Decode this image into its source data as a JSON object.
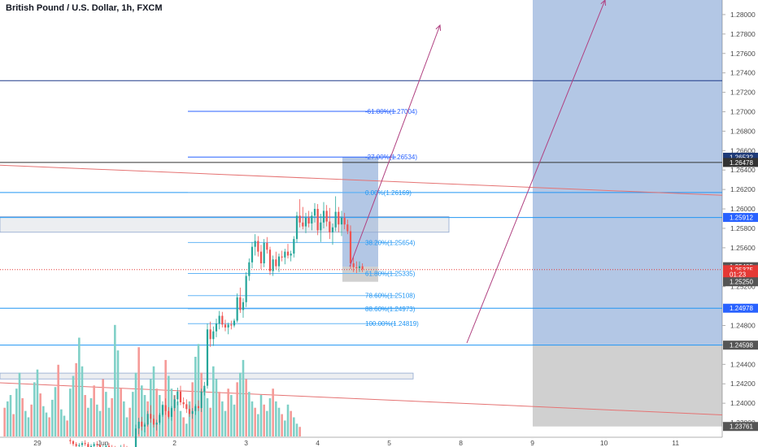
{
  "header": {
    "title": "British Pound / U.S. Dollar, 1h, FXCM"
  },
  "chart_data": {
    "type": "candlestick",
    "title": "British Pound / U.S. Dollar, 1h, FXCM",
    "ylim": [
      1.2365,
      1.2815
    ],
    "y_ticks": [
      1.28,
      1.278,
      1.276,
      1.274,
      1.272,
      1.27,
      1.268,
      1.266,
      1.264,
      1.262,
      1.26,
      1.258,
      1.256,
      1.252,
      1.248,
      1.246,
      1.244,
      1.242,
      1.24,
      1.238
    ],
    "y_tick_labels": [
      "1.28000",
      "1.27800",
      "1.27600",
      "1.27400",
      "1.27200",
      "1.27000",
      "1.26800",
      "1.26600",
      "1.26400",
      "1.26200",
      "1.26000",
      "1.25800",
      "1.25600",
      "1.25200",
      "1.24800",
      "1.24600",
      "1.24400",
      "1.24200",
      "1.24000",
      "1.23800"
    ],
    "x_ticks": [
      {
        "label": "29",
        "index": 0
      },
      {
        "label": "Jun",
        "index": 22
      },
      {
        "label": "2",
        "index": 46
      },
      {
        "label": "3",
        "index": 70
      },
      {
        "label": "4",
        "index": 94
      },
      {
        "label": "5",
        "index": 118
      },
      {
        "label": "8",
        "index": 142
      },
      {
        "label": "9",
        "index": 166
      },
      {
        "label": "10",
        "index": 190
      },
      {
        "label": "11",
        "index": 214
      }
    ],
    "x_start_index": -11,
    "x_end_index": 227,
    "candles": [
      [
        1.2362,
        1.2364,
        1.2358,
        1.2361
      ],
      [
        1.2361,
        1.2362,
        1.2356,
        1.2358
      ],
      [
        1.2358,
        1.236,
        1.2354,
        1.2356
      ],
      [
        1.2356,
        1.2359,
        1.2353,
        1.2357
      ],
      [
        1.2357,
        1.2361,
        1.2355,
        1.2359
      ],
      [
        1.2359,
        1.2362,
        1.2356,
        1.2358
      ],
      [
        1.2358,
        1.236,
        1.2352,
        1.2354
      ],
      [
        1.2354,
        1.2358,
        1.2351,
        1.2356
      ],
      [
        1.2356,
        1.236,
        1.2354,
        1.2358
      ],
      [
        1.2358,
        1.2361,
        1.2355,
        1.2357
      ],
      [
        1.2357,
        1.2358,
        1.235,
        1.2352
      ],
      [
        1.2352,
        1.2356,
        1.235,
        1.2354
      ],
      [
        1.2354,
        1.2358,
        1.2352,
        1.2356
      ],
      [
        1.2356,
        1.2359,
        1.2353,
        1.2355
      ],
      [
        1.2355,
        1.2357,
        1.2351,
        1.2353
      ],
      [
        1.2353,
        1.2356,
        1.235,
        1.2351
      ],
      [
        1.2351,
        1.2355,
        1.2349,
        1.2353
      ],
      [
        1.2353,
        1.2357,
        1.2351,
        1.2355
      ],
      [
        1.2355,
        1.2358,
        1.2352,
        1.2354
      ],
      [
        1.2354,
        1.2356,
        1.2348,
        1.235
      ],
      [
        1.235,
        1.2354,
        1.2348,
        1.2352
      ],
      [
        1.2352,
        1.2355,
        1.2349,
        1.2351
      ],
      [
        1.2351,
        1.2378,
        1.2349,
        1.2374
      ],
      [
        1.2374,
        1.2385,
        1.2368,
        1.2381
      ],
      [
        1.2381,
        1.2386,
        1.2372,
        1.2376
      ],
      [
        1.2376,
        1.238,
        1.237,
        1.2378
      ],
      [
        1.2378,
        1.2392,
        1.2376,
        1.2389
      ],
      [
        1.2389,
        1.2398,
        1.238,
        1.2384
      ],
      [
        1.2384,
        1.2388,
        1.2375,
        1.2378
      ],
      [
        1.2378,
        1.2383,
        1.2372,
        1.238
      ],
      [
        1.238,
        1.239,
        1.2378,
        1.2388
      ],
      [
        1.2388,
        1.2402,
        1.2386,
        1.2398
      ],
      [
        1.2398,
        1.2405,
        1.2388,
        1.2392
      ],
      [
        1.2392,
        1.2396,
        1.2384,
        1.2386
      ],
      [
        1.2386,
        1.2397,
        1.2382,
        1.2395
      ],
      [
        1.2395,
        1.2408,
        1.2392,
        1.2404
      ],
      [
        1.2404,
        1.2416,
        1.2398,
        1.2412
      ],
      [
        1.2412,
        1.2418,
        1.2398,
        1.2401
      ],
      [
        1.2401,
        1.2406,
        1.2395,
        1.2399
      ],
      [
        1.2399,
        1.2404,
        1.239,
        1.2394
      ],
      [
        1.2394,
        1.2398,
        1.2386,
        1.2389
      ],
      [
        1.2389,
        1.2395,
        1.2384,
        1.2392
      ],
      [
        1.2392,
        1.2399,
        1.2388,
        1.2397
      ],
      [
        1.2397,
        1.2403,
        1.2392,
        1.2395
      ],
      [
        1.2395,
        1.2415,
        1.2391,
        1.2412
      ],
      [
        1.2412,
        1.2422,
        1.2408,
        1.2418
      ],
      [
        1.2418,
        1.2482,
        1.2415,
        1.2476
      ],
      [
        1.2476,
        1.2484,
        1.2458,
        1.2466
      ],
      [
        1.2466,
        1.2479,
        1.2459,
        1.2474
      ],
      [
        1.2474,
        1.2487,
        1.2468,
        1.2482
      ],
      [
        1.2482,
        1.2495,
        1.2476,
        1.249
      ],
      [
        1.249,
        1.2494,
        1.2478,
        1.2481
      ],
      [
        1.2481,
        1.2486,
        1.2474,
        1.2478
      ],
      [
        1.2478,
        1.2483,
        1.2471,
        1.2481
      ],
      [
        1.2481,
        1.2485,
        1.2476,
        1.248
      ],
      [
        1.248,
        1.2487,
        1.2478,
        1.2485
      ],
      [
        1.2485,
        1.2513,
        1.2483,
        1.2509
      ],
      [
        1.2509,
        1.2519,
        1.2493,
        1.2496
      ],
      [
        1.2496,
        1.2508,
        1.2488,
        1.2504
      ],
      [
        1.2504,
        1.2535,
        1.2499,
        1.2531
      ],
      [
        1.2531,
        1.2549,
        1.2526,
        1.2545
      ],
      [
        1.2545,
        1.2566,
        1.2539,
        1.2561
      ],
      [
        1.2561,
        1.2574,
        1.2552,
        1.2567
      ],
      [
        1.2567,
        1.2572,
        1.2551,
        1.2556
      ],
      [
        1.2556,
        1.2563,
        1.2538,
        1.2544
      ],
      [
        1.2544,
        1.2569,
        1.254,
        1.2565
      ],
      [
        1.2565,
        1.2571,
        1.2554,
        1.2558
      ],
      [
        1.2558,
        1.2561,
        1.2532,
        1.2536
      ],
      [
        1.2536,
        1.2552,
        1.2531,
        1.2548
      ],
      [
        1.2548,
        1.2556,
        1.2538,
        1.2541
      ],
      [
        1.2541,
        1.2554,
        1.2535,
        1.2551
      ],
      [
        1.2551,
        1.2557,
        1.2546,
        1.255
      ],
      [
        1.255,
        1.2559,
        1.2543,
        1.2556
      ],
      [
        1.2556,
        1.2564,
        1.2549,
        1.2552
      ],
      [
        1.2552,
        1.2557,
        1.2546,
        1.2554
      ],
      [
        1.2554,
        1.2572,
        1.255,
        1.2569
      ],
      [
        1.2569,
        1.2597,
        1.2565,
        1.2593
      ],
      [
        1.2593,
        1.261,
        1.2581,
        1.2586
      ],
      [
        1.2586,
        1.2602,
        1.2579,
        1.2582
      ],
      [
        1.2582,
        1.2596,
        1.2575,
        1.2591
      ],
      [
        1.2591,
        1.2598,
        1.2581,
        1.2585
      ],
      [
        1.2585,
        1.2597,
        1.2578,
        1.2593
      ],
      [
        1.2593,
        1.2606,
        1.2586,
        1.26
      ],
      [
        1.26,
        1.2605,
        1.2573,
        1.2578
      ],
      [
        1.2578,
        1.2595,
        1.2566,
        1.2586
      ],
      [
        1.2586,
        1.2607,
        1.258,
        1.2598
      ],
      [
        1.2598,
        1.2604,
        1.2582,
        1.2587
      ],
      [
        1.2587,
        1.2601,
        1.2569,
        1.2576
      ],
      [
        1.2576,
        1.2585,
        1.2563,
        1.2581
      ],
      [
        1.2581,
        1.2613,
        1.2577,
        1.2597
      ],
      [
        1.2597,
        1.2602,
        1.2576,
        1.2584
      ],
      [
        1.2584,
        1.2598,
        1.2572,
        1.2591
      ],
      [
        1.2591,
        1.2596,
        1.2579,
        1.2584
      ],
      [
        1.2584,
        1.2589,
        1.2574,
        1.2577
      ],
      [
        1.2577,
        1.2583,
        1.2538,
        1.2544
      ],
      [
        1.2544,
        1.255,
        1.2535,
        1.254
      ],
      [
        1.254,
        1.2546,
        1.2534,
        1.2539
      ],
      [
        1.2539,
        1.2546,
        1.2535,
        1.2541
      ],
      [
        1.2541,
        1.2544,
        1.2535,
        1.2538
      ]
    ],
    "volumes": [
      18,
      22,
      26,
      14,
      30,
      40,
      24,
      16,
      12,
      20,
      34,
      42,
      27,
      19,
      15,
      12,
      23,
      31,
      45,
      17,
      13,
      10,
      30,
      38,
      46,
      62,
      44,
      26,
      18,
      24,
      32,
      20,
      16,
      36,
      28,
      18,
      24,
      70,
      54,
      30,
      22,
      12,
      18,
      28,
      40,
      56,
      32,
      26,
      22,
      36,
      44,
      30,
      26,
      20,
      48,
      38,
      30,
      26,
      22,
      16,
      12,
      8,
      22,
      34,
      50,
      58,
      40,
      30,
      24,
      18,
      44,
      36,
      28,
      22,
      16,
      30,
      26,
      20,
      34,
      40,
      48,
      36,
      28,
      22,
      18,
      14,
      26,
      20,
      16,
      24,
      30,
      22,
      18,
      14,
      10,
      20,
      16,
      12,
      8,
      6
    ],
    "volume_colors": "alternating",
    "last_price": 1.25375
  },
  "price_tags": [
    {
      "label": "1.26532",
      "value": 1.26532,
      "color": "#1e3a78"
    },
    {
      "label": "1.26478",
      "value": 1.26478,
      "color": "#333333"
    },
    {
      "label": "1.25912",
      "value": 1.25912,
      "color": "#2962ff"
    },
    {
      "label": "1.25405",
      "value": 1.25405,
      "color": "#555555"
    },
    {
      "label": "1.25375",
      "value": 1.25375,
      "color": "#e53935"
    },
    {
      "label": "01:23",
      "value": 1.25325,
      "color": "#e53935"
    },
    {
      "label": "1.25250",
      "value": 1.2525,
      "color": "#555555"
    },
    {
      "label": "1.24978",
      "value": 1.24978,
      "color": "#2962ff"
    },
    {
      "label": "1.24598",
      "value": 1.24598,
      "color": "#555555"
    },
    {
      "label": "1.23761",
      "value": 1.23761,
      "color": "#555555"
    }
  ],
  "fib_levels": [
    {
      "label": "-61.80%(1.27004)",
      "value": 1.27004
    },
    {
      "label": "-27.00%(1.26534)",
      "value": 1.26534
    },
    {
      "label": "0.00%(1.26169)",
      "value": 1.26169
    },
    {
      "label": "38.20%(1.25654)",
      "value": 1.25654
    },
    {
      "label": "61.80%(1.25335)",
      "value": 1.25335
    },
    {
      "label": "78.60%(1.25108)",
      "value": 1.25108
    },
    {
      "label": "88.60%(1.24973)",
      "value": 1.24973
    },
    {
      "label": "100.00%(1.24819)",
      "value": 1.24819
    }
  ],
  "horizontal_lines": [
    {
      "value": 1.2732,
      "color": "#1e3a8a"
    },
    {
      "value": 1.26478,
      "color": "#333333"
    },
    {
      "value": 1.26169,
      "color": "#2196f3"
    },
    {
      "value": 1.25912,
      "color": "#2196f3"
    },
    {
      "value": 1.24978,
      "color": "#2196f3"
    },
    {
      "value": 1.24598,
      "color": "#2196f3"
    }
  ],
  "colors": {
    "up": "#26a69a",
    "down": "#ef5350",
    "vol_up": "#7fd0c7",
    "vol_down": "#f59a97",
    "fib": "#2962ff",
    "fib_text_upper": "#2962ff",
    "fib_text_lower": "#2196f3",
    "trend_red": "#e57373",
    "arrow": "#b04080",
    "zone_blue": "rgba(66,115,190,0.4)",
    "zone_gray": "rgba(120,120,120,0.35)",
    "axis_text": "#4a4a4a"
  }
}
